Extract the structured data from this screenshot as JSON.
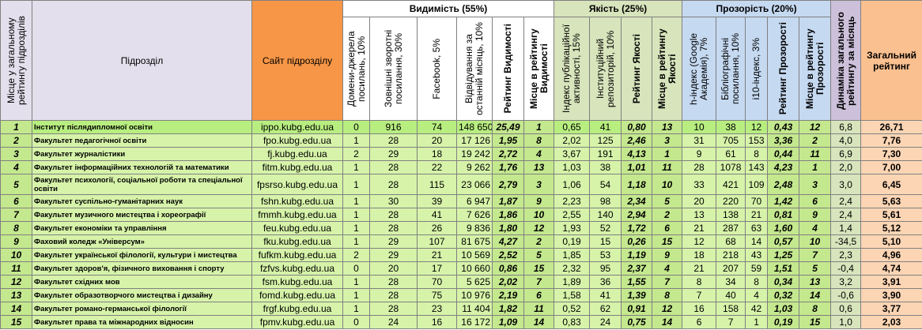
{
  "table": {
    "headers": {
      "place": "Місце у загальному рейтингу підрозділів",
      "unit": "Підрозділ",
      "site": "Сайт підрозділу",
      "groups": [
        {
          "title": "Видимість (55%)",
          "columns": [
            "Домени-джерела посилань, 10%",
            "Зовнішні зворотні посилання, 30%",
            "Facebook, 5%",
            "Відвідування за останній місяць, 10%",
            "Рейтинг Видимості",
            "Місце в рейтингу Видимості"
          ]
        },
        {
          "title": "Якість (25%)",
          "columns": [
            "Індекс публікаційної активності, 15%",
            "Інституційний репозиторій, 10%",
            "Рейтинг Якості",
            "Місце в рейтингу Якості"
          ]
        },
        {
          "title": "Прозорість (20%)",
          "columns": [
            "h-індекс (Google Академія), 7%",
            "Бібліографічні посилання, 10%",
            "i10-індекс, 3%",
            "Рейтинг Прозорості",
            "Місце в рейтингу Прозорості"
          ]
        }
      ],
      "dynamics": "Динаміка загального рейтингу за місяць",
      "total": "Загальний рейтинг"
    },
    "rows": [
      [
        "1",
        "Інститут післядипломної освіти",
        "ippo.kubg.edu.ua",
        "0",
        "916",
        "74",
        "148 650",
        "25,49",
        "1",
        "0,65",
        "41",
        "0,80",
        "13",
        "10",
        "38",
        "12",
        "0,43",
        "12",
        "6,8",
        "26,71"
      ],
      [
        "2",
        "Факультет педагогічної освіти",
        "fpo.kubg.edu.ua",
        "1",
        "28",
        "20",
        "17 126",
        "1,95",
        "8",
        "2,02",
        "125",
        "2,46",
        "3",
        "31",
        "705",
        "153",
        "3,36",
        "2",
        "4,0",
        "7,76"
      ],
      [
        "3",
        "Факультет журналістики",
        "fj.kubg.edu.ua",
        "2",
        "29",
        "18",
        "19 242",
        "2,72",
        "4",
        "3,67",
        "191",
        "4,13",
        "1",
        "9",
        "61",
        "8",
        "0,44",
        "11",
        "6,9",
        "7,30"
      ],
      [
        "4",
        "Факультет інформаційних технологій та математики",
        "fitm.kubg.edu.ua",
        "1",
        "28",
        "22",
        "9 262",
        "1,76",
        "13",
        "1,03",
        "38",
        "1,01",
        "11",
        "28",
        "1078",
        "143",
        "4,23",
        "1",
        "2,0",
        "7,00"
      ],
      [
        "5",
        "Факультет психології, соціальної роботи та спеціальної освіти",
        "fpsrso.kubg.edu.ua",
        "1",
        "28",
        "115",
        "23 066",
        "2,79",
        "3",
        "1,06",
        "54",
        "1,18",
        "10",
        "33",
        "421",
        "109",
        "2,48",
        "3",
        "3,0",
        "6,45"
      ],
      [
        "6",
        "Факультет суспільно-гуманітарних наук",
        "fshn.kubg.edu.ua",
        "1",
        "30",
        "39",
        "6 947",
        "1,87",
        "9",
        "2,23",
        "98",
        "2,34",
        "5",
        "20",
        "220",
        "70",
        "1,42",
        "6",
        "2,4",
        "5,63"
      ],
      [
        "7",
        "Факультет музичного мистецтва і хореографії",
        "fmmh.kubg.edu.ua",
        "1",
        "28",
        "41",
        "7 626",
        "1,86",
        "10",
        "2,55",
        "140",
        "2,94",
        "2",
        "13",
        "138",
        "21",
        "0,81",
        "9",
        "2,4",
        "5,61"
      ],
      [
        "8",
        "Факультет економіки та управління",
        "feu.kubg.edu.ua",
        "1",
        "28",
        "26",
        "9 836",
        "1,80",
        "12",
        "1,93",
        "52",
        "1,72",
        "6",
        "21",
        "287",
        "63",
        "1,60",
        "4",
        "1,4",
        "5,12"
      ],
      [
        "9",
        "Фаховий коледж «Універсум»",
        "fku.kubg.edu.ua",
        "1",
        "29",
        "107",
        "81 675",
        "4,27",
        "2",
        "0,19",
        "15",
        "0,26",
        "15",
        "12",
        "68",
        "14",
        "0,57",
        "10",
        "-34,5",
        "5,10"
      ],
      [
        "10",
        "Факультет української філології, культури і мистецтва",
        "fufkm.kubg.edu.ua",
        "2",
        "29",
        "21",
        "10 569",
        "2,52",
        "5",
        "1,85",
        "53",
        "1,19",
        "9",
        "18",
        "218",
        "43",
        "1,25",
        "7",
        "2,3",
        "4,96"
      ],
      [
        "11",
        "Факультет здоров'я, фізичного виховання і спорту",
        "fzfvs.kubg.edu.ua",
        "0",
        "20",
        "17",
        "10 660",
        "0,86",
        "15",
        "2,32",
        "95",
        "2,37",
        "4",
        "21",
        "207",
        "59",
        "1,51",
        "5",
        "-0,4",
        "4,74"
      ],
      [
        "12",
        "Факультет східних мов",
        "fsm.kubg.edu.ua",
        "1",
        "28",
        "70",
        "5 625",
        "2,02",
        "7",
        "1,89",
        "36",
        "1,55",
        "7",
        "8",
        "34",
        "8",
        "0,34",
        "13",
        "3,2",
        "3,91"
      ],
      [
        "13",
        "Факультет образотворчого мистецтва і дизайну",
        "fomd.kubg.edu.ua",
        "1",
        "28",
        "75",
        "10 976",
        "2,19",
        "6",
        "1,58",
        "41",
        "1,39",
        "8",
        "7",
        "40",
        "4",
        "0,32",
        "14",
        "-0,6",
        "3,90"
      ],
      [
        "14",
        "Факультет романо-германської філології",
        "frgf.kubg.edu.ua",
        "1",
        "28",
        "23",
        "11 404",
        "1,82",
        "11",
        "0,52",
        "62",
        "0,91",
        "12",
        "16",
        "158",
        "42",
        "1,03",
        "8",
        "0,6",
        "3,77"
      ],
      [
        "15",
        "Факультет права та міжнародних відносин",
        "fpmv.kubg.edu.ua",
        "0",
        "24",
        "16",
        "16 172",
        "1,09",
        "14",
        "0,83",
        "24",
        "0,75",
        "14",
        "6",
        "7",
        "1",
        "0,19",
        "15",
        "1,0",
        "2,03"
      ]
    ]
  }
}
